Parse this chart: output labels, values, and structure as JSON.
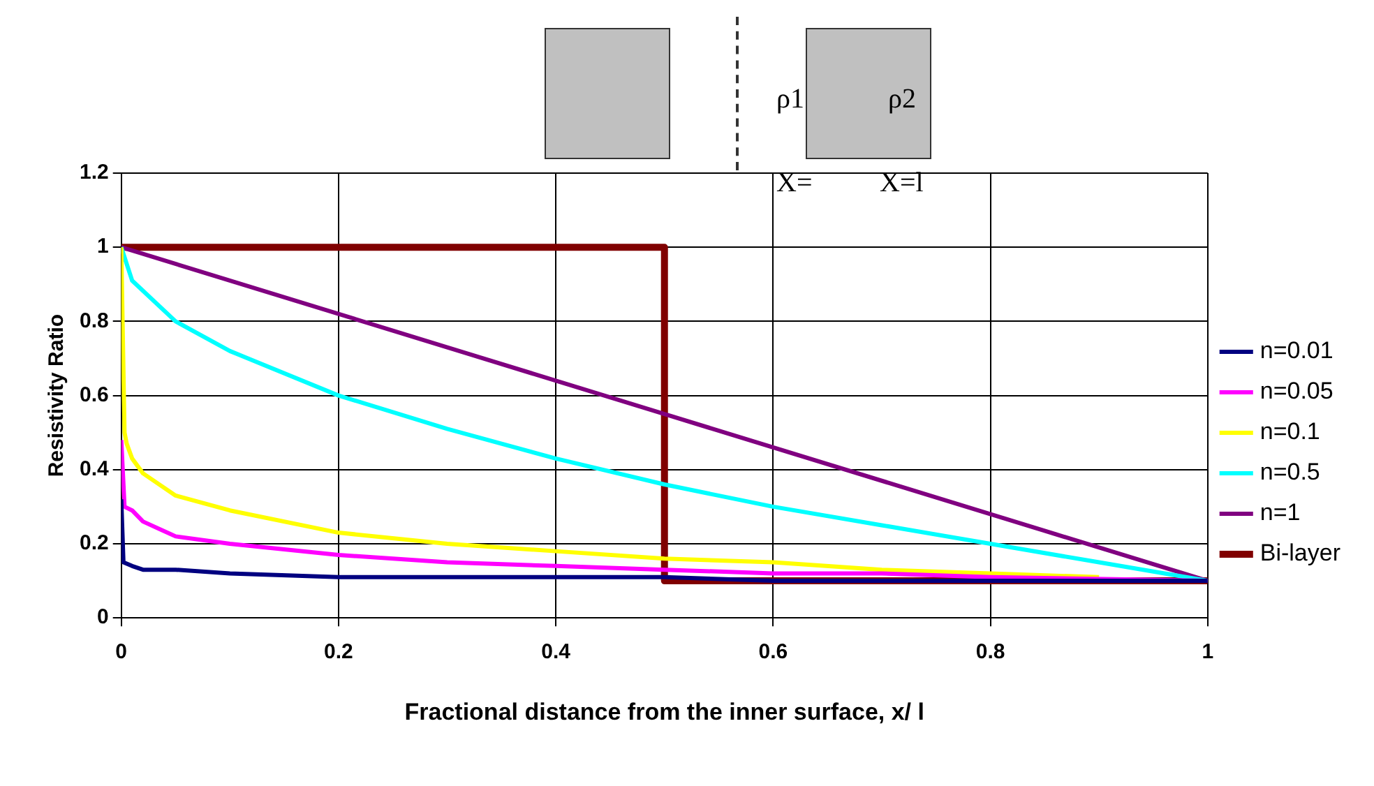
{
  "chart_data": {
    "type": "line",
    "xlabel": "Fractional distance from the inner surface, x/ l",
    "ylabel": "Resistivity Ratio",
    "xlim": [
      0,
      1
    ],
    "xticks": [
      0,
      0.2,
      0.4,
      0.6,
      0.8,
      1
    ],
    "ylim": [
      0,
      1.2
    ],
    "yticks": [
      0,
      0.2,
      0.4,
      0.6,
      0.8,
      1,
      1.2
    ],
    "grid": true,
    "legend": "right",
    "marker": "none",
    "line_style": "solid",
    "annotations": [
      "ρ1",
      "ρ2",
      "X=",
      "X=l"
    ],
    "series": [
      {
        "name": "n=0.01",
        "color": "#000080",
        "x": [
          0,
          0.002,
          0.01,
          0.02,
          0.05,
          0.1,
          0.2,
          0.3,
          0.4,
          0.5,
          0.6,
          0.7,
          0.8,
          0.9,
          1
        ],
        "values": [
          0.32,
          0.15,
          0.14,
          0.13,
          0.13,
          0.12,
          0.11,
          0.11,
          0.11,
          0.11,
          0.1,
          0.1,
          0.1,
          0.1,
          0.1
        ]
      },
      {
        "name": "n=0.05",
        "color": "#ff00ff",
        "x": [
          0,
          0.003,
          0.01,
          0.02,
          0.05,
          0.1,
          0.2,
          0.3,
          0.4,
          0.5,
          0.6,
          0.7,
          0.8,
          1
        ],
        "values": [
          0.48,
          0.3,
          0.29,
          0.26,
          0.22,
          0.2,
          0.17,
          0.15,
          0.14,
          0.13,
          0.12,
          0.12,
          0.11,
          0.1
        ]
      },
      {
        "name": "n=0.1",
        "color": "#ffff00",
        "x": [
          0,
          0.003,
          0.005,
          0.01,
          0.02,
          0.05,
          0.1,
          0.2,
          0.3,
          0.4,
          0.5,
          0.6,
          0.7,
          0.8,
          0.9
        ],
        "values": [
          1,
          0.5,
          0.47,
          0.43,
          0.39,
          0.33,
          0.29,
          0.23,
          0.2,
          0.18,
          0.16,
          0.15,
          0.13,
          0.12,
          0.11
        ]
      },
      {
        "name": "n=0.5",
        "color": "#00ffff",
        "x": [
          0,
          0.01,
          0.05,
          0.1,
          0.2,
          0.3,
          0.4,
          0.5,
          0.6,
          0.7,
          0.8,
          0.9,
          1
        ],
        "values": [
          1,
          0.91,
          0.8,
          0.72,
          0.6,
          0.51,
          0.43,
          0.36,
          0.3,
          0.25,
          0.2,
          0.15,
          0.1
        ]
      },
      {
        "name": "n=1",
        "color": "#800080",
        "x": [
          0,
          0.5,
          1
        ],
        "values": [
          1,
          0.55,
          0.1
        ]
      },
      {
        "name": "Bi-layer",
        "color": "#800000",
        "x": [
          0,
          0.5,
          0.5,
          1
        ],
        "values": [
          1,
          1,
          0.1,
          0.1
        ]
      }
    ]
  }
}
